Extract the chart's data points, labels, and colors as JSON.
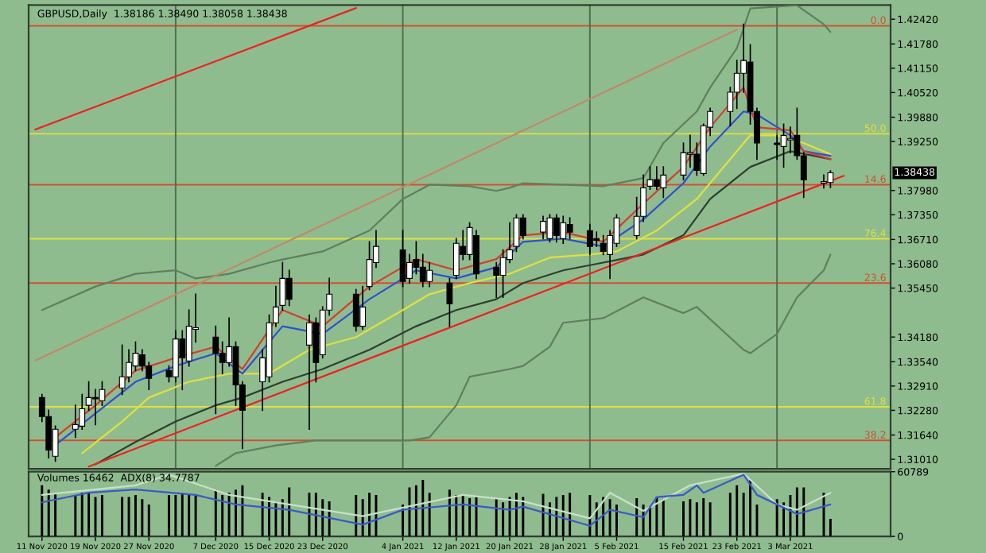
{
  "chart_data": [
    {
      "type": "candlestick",
      "title": "GBPUSD,Daily  1.38186 1.38490 1.38058 1.38438",
      "x": [
        "2020-11-11",
        "2020-11-12",
        "2020-11-13",
        "2020-11-16",
        "2020-11-17",
        "2020-11-18",
        "2020-11-19",
        "2020-11-20",
        "2020-11-23",
        "2020-11-24",
        "2020-11-25",
        "2020-11-26",
        "2020-11-27",
        "2020-11-30",
        "2020-12-01",
        "2020-12-02",
        "2020-12-03",
        "2020-12-04",
        "2020-12-07",
        "2020-12-08",
        "2020-12-09",
        "2020-12-10",
        "2020-12-11",
        "2020-12-14",
        "2020-12-15",
        "2020-12-16",
        "2020-12-17",
        "2020-12-18",
        "2020-12-21",
        "2020-12-22",
        "2020-12-23",
        "2020-12-24",
        "2020-12-28",
        "2020-12-29",
        "2020-12-30",
        "2020-12-31",
        "2021-01-04",
        "2021-01-05",
        "2021-01-06",
        "2021-01-07",
        "2021-01-08",
        "2021-01-11",
        "2021-01-12",
        "2021-01-13",
        "2021-01-14",
        "2021-01-15",
        "2021-01-18",
        "2021-01-19",
        "2021-01-20",
        "2021-01-21",
        "2021-01-22",
        "2021-01-25",
        "2021-01-26",
        "2021-01-27",
        "2021-01-28",
        "2021-01-29",
        "2021-02-01",
        "2021-02-02",
        "2021-02-03",
        "2021-02-04",
        "2021-02-05",
        "2021-02-08",
        "2021-02-09",
        "2021-02-10",
        "2021-02-11",
        "2021-02-12",
        "2021-02-15",
        "2021-02-16",
        "2021-02-17",
        "2021-02-18",
        "2021-02-19",
        "2021-02-22",
        "2021-02-23",
        "2021-02-24",
        "2021-02-25",
        "2021-02-26",
        "2021-03-01",
        "2021-03-02",
        "2021-03-03",
        "2021-03-04",
        "2021-03-05",
        "2021-03-08",
        "2021-03-09"
      ],
      "ohlc": [
        [
          1.3261,
          1.3269,
          1.3199,
          1.3212
        ],
        [
          1.3212,
          1.3228,
          1.3105,
          1.3125
        ],
        [
          1.3109,
          1.3187,
          1.3096,
          1.3179
        ],
        [
          1.3179,
          1.3241,
          1.3158,
          1.3191
        ],
        [
          1.3187,
          1.3269,
          1.3179,
          1.3232
        ],
        [
          1.3241,
          1.3302,
          1.3228,
          1.3261
        ],
        [
          1.3261,
          1.3282,
          1.3191,
          1.3258
        ],
        [
          1.3253,
          1.3302,
          1.3241,
          1.3282
        ],
        [
          1.3286,
          1.3397,
          1.3269,
          1.3315
        ],
        [
          1.3315,
          1.3385,
          1.3302,
          1.3352
        ],
        [
          1.3343,
          1.3405,
          1.3331,
          1.3376
        ],
        [
          1.3372,
          1.3385,
          1.3331,
          1.3343
        ],
        [
          1.3343,
          1.3352,
          1.3282,
          1.3311
        ],
        [
          1.3331,
          1.3343,
          1.3302,
          1.3315
        ],
        [
          1.3315,
          1.3434,
          1.3302,
          1.3413
        ],
        [
          1.3413,
          1.3434,
          1.3282,
          1.3364
        ],
        [
          1.3356,
          1.3488,
          1.3343,
          1.3446
        ],
        [
          1.3438,
          1.3529,
          1.3405,
          1.3442
        ],
        [
          1.3418,
          1.3446,
          1.322,
          1.3376
        ],
        [
          1.3376,
          1.3405,
          1.3323,
          1.3352
        ],
        [
          1.3352,
          1.3467,
          1.3343,
          1.3393
        ],
        [
          1.3393,
          1.3405,
          1.3241,
          1.3294
        ],
        [
          1.3294,
          1.3302,
          1.3129,
          1.3228
        ],
        [
          1.3302,
          1.3385,
          1.3228,
          1.3364
        ],
        [
          1.3315,
          1.3475,
          1.3302,
          1.3455
        ],
        [
          1.3455,
          1.3549,
          1.3446,
          1.3496
        ],
        [
          1.35,
          1.3611,
          1.3488,
          1.357
        ],
        [
          1.357,
          1.3591,
          1.35,
          1.3516
        ],
        [
          1.3397,
          1.3475,
          1.3179,
          1.3455
        ],
        [
          1.3455,
          1.3467,
          1.3302,
          1.3352
        ],
        [
          1.3372,
          1.3496,
          1.3364,
          1.3488
        ],
        [
          1.3488,
          1.357,
          1.3475,
          1.3529
        ],
        [
          1.3529,
          1.3541,
          1.3434,
          1.3446
        ],
        [
          1.3446,
          1.3549,
          1.3438,
          1.3496
        ],
        [
          1.3549,
          1.3665,
          1.3541,
          1.3619
        ],
        [
          1.3611,
          1.3694,
          1.3599,
          1.3653
        ],
        [
          1.3644,
          1.3694,
          1.3549,
          1.3562
        ],
        [
          1.357,
          1.3632,
          1.3558,
          1.3611
        ],
        [
          1.3619,
          1.3665,
          1.3582,
          1.3599
        ],
        [
          1.3599,
          1.3632,
          1.3549,
          1.3562
        ],
        [
          1.3562,
          1.3611,
          1.3549,
          1.3591
        ],
        [
          1.3558,
          1.357,
          1.3446,
          1.3504
        ],
        [
          1.3578,
          1.3673,
          1.357,
          1.3661
        ],
        [
          1.3653,
          1.3694,
          1.3619,
          1.3632
        ],
        [
          1.3632,
          1.3714,
          1.3619,
          1.3702
        ],
        [
          1.3681,
          1.3694,
          1.357,
          1.3582
        ],
        [
          1.3599,
          1.3611,
          1.3521,
          1.3578
        ],
        [
          1.3578,
          1.3644,
          1.3521,
          1.3624
        ],
        [
          1.3619,
          1.3714,
          1.3611,
          1.3644
        ],
        [
          1.3653,
          1.3735,
          1.364,
          1.3727
        ],
        [
          1.3727,
          1.3735,
          1.3673,
          1.3681
        ],
        [
          1.369,
          1.3731,
          1.3673,
          1.3718
        ],
        [
          1.3673,
          1.3735,
          1.3665,
          1.3727
        ],
        [
          1.3727,
          1.3735,
          1.3665,
          1.3681
        ],
        [
          1.3673,
          1.3731,
          1.3661,
          1.3714
        ],
        [
          1.371,
          1.3727,
          1.3673,
          1.369
        ],
        [
          1.3694,
          1.371,
          1.3632,
          1.3653
        ],
        [
          1.3673,
          1.369,
          1.3653,
          1.3669
        ],
        [
          1.3661,
          1.3681,
          1.3632,
          1.364
        ],
        [
          1.3632,
          1.3694,
          1.357,
          1.3681
        ],
        [
          1.3661,
          1.3735,
          1.3653,
          1.3727
        ],
        [
          1.3681,
          1.378,
          1.3673,
          1.3731
        ],
        [
          1.3731,
          1.3838,
          1.3718,
          1.3805
        ],
        [
          1.3809,
          1.3859,
          1.3801,
          1.3826
        ],
        [
          1.3826,
          1.3859,
          1.3801,
          1.3809
        ],
        [
          1.3805,
          1.3859,
          1.378,
          1.3838
        ],
        [
          1.3838,
          1.3921,
          1.3826,
          1.3896
        ],
        [
          1.3892,
          1.3941,
          1.3859,
          1.3896
        ],
        [
          1.3892,
          1.3921,
          1.3838,
          1.385
        ],
        [
          1.3842,
          1.397,
          1.3838,
          1.3966
        ],
        [
          1.3962,
          1.4011,
          1.3941,
          1.4003
        ],
        [
          1.4003,
          1.4065,
          1.3966,
          1.4053
        ],
        [
          1.4053,
          1.4135,
          1.4011,
          1.4102
        ],
        [
          1.4102,
          1.4229,
          1.4053,
          1.4135
        ],
        [
          1.4131,
          1.4176,
          1.397,
          1.4003
        ],
        [
          1.4003,
          1.4011,
          1.3879,
          1.3921
        ],
        [
          1.3921,
          1.3941,
          1.3879,
          1.3917
        ],
        [
          1.3912,
          1.397,
          1.3859,
          1.3941
        ],
        [
          1.3929,
          1.3962,
          1.3896,
          1.3933
        ],
        [
          1.3941,
          1.4011,
          1.3879,
          1.3888
        ],
        [
          1.3888,
          1.3896,
          1.378,
          1.3826
        ],
        [
          1.3817,
          1.3838,
          1.3805,
          1.3821
        ],
        [
          1.38186,
          1.3849,
          1.38058,
          1.38438
        ]
      ],
      "series": [
        {
          "type": "line",
          "color": "#5f7f5f",
          "x": [
            "2020-11-11",
            "2020-11-19",
            "2020-11-25",
            "2020-12-01",
            "2020-12-04",
            "2020-12-09",
            "2020-12-15",
            "2020-12-17",
            "2020-12-23",
            "2020-12-30",
            "2021-01-04",
            "2021-01-08",
            "2021-01-14",
            "2021-01-18",
            "2021-01-20",
            "2021-01-22",
            "2021-01-28",
            "2021-02-03",
            "2021-02-09",
            "2021-02-12",
            "2021-02-17",
            "2021-02-19",
            "2021-02-23",
            "2021-02-25",
            "2021-03-04",
            "2021-03-08",
            "2021-03-09"
          ],
          "values": [
            1.3488,
            1.3549,
            1.3582,
            1.3591,
            1.357,
            1.3582,
            1.3611,
            1.3619,
            1.364,
            1.3694,
            1.3776,
            1.3813,
            1.3809,
            1.3797,
            1.3805,
            1.3817,
            1.3813,
            1.3809,
            1.383,
            1.3921,
            1.4003,
            1.4065,
            1.4167,
            1.427,
            1.4278,
            1.4229,
            1.4209
          ]
        },
        {
          "type": "line",
          "color": "#5f7f5f",
          "x": [
            "2020-12-07",
            "2020-12-10",
            "2020-12-16",
            "2020-12-22",
            "2021-01-05",
            "2021-01-08",
            "2021-01-12",
            "2021-01-14",
            "2021-01-20",
            "2021-01-22",
            "2021-01-26",
            "2021-01-28",
            "2021-02-03",
            "2021-02-09",
            "2021-02-15",
            "2021-02-17",
            "2021-02-24",
            "2021-02-25",
            "2021-03-01",
            "2021-03-04",
            "2021-03-08",
            "2021-03-09"
          ],
          "values": [
            1.3084,
            1.3117,
            1.3137,
            1.315,
            1.315,
            1.3158,
            1.3241,
            1.3315,
            1.3335,
            1.3343,
            1.3393,
            1.3455,
            1.3467,
            1.3521,
            1.348,
            1.3496,
            1.3385,
            1.3376,
            1.3426,
            1.3521,
            1.3591,
            1.3632
          ]
        },
        {
          "type": "line",
          "color": "#2f3f2f",
          "x": [
            "2020-11-19",
            "2020-11-25",
            "2020-12-01",
            "2020-12-07",
            "2020-12-11",
            "2020-12-17",
            "2020-12-23",
            "2020-12-30",
            "2021-01-06",
            "2021-01-12",
            "2021-01-18",
            "2021-01-22",
            "2021-01-28",
            "2021-02-03",
            "2021-02-09",
            "2021-02-15",
            "2021-02-19",
            "2021-02-25",
            "2021-03-03",
            "2021-03-09"
          ],
          "values": [
            1.3088,
            1.3146,
            1.3199,
            1.3241,
            1.3261,
            1.3302,
            1.3335,
            1.3385,
            1.3446,
            1.3488,
            1.3516,
            1.3558,
            1.3591,
            1.3611,
            1.3632,
            1.3682,
            1.3776,
            1.3859,
            1.39,
            1.3879
          ]
        },
        {
          "type": "line",
          "color": "#e0e040",
          "x": [
            "2020-11-17",
            "2020-11-23",
            "2020-11-27",
            "2020-12-03",
            "2020-12-09",
            "2020-12-15",
            "2020-12-21",
            "2020-12-28",
            "2021-01-04",
            "2021-01-08",
            "2021-01-14",
            "2021-01-20",
            "2021-01-26",
            "2021-02-01",
            "2021-02-05",
            "2021-02-11",
            "2021-02-17",
            "2021-02-23",
            "2021-02-25",
            "2021-03-01",
            "2021-03-05",
            "2021-03-09"
          ],
          "values": [
            1.3117,
            1.3199,
            1.3261,
            1.3302,
            1.3323,
            1.3323,
            1.3385,
            1.3418,
            1.3488,
            1.3529,
            1.3558,
            1.3582,
            1.3624,
            1.3632,
            1.364,
            1.3694,
            1.3776,
            1.39,
            1.3941,
            1.3941,
            1.3921,
            1.3892
          ]
        },
        {
          "type": "line",
          "color": "#3050d0",
          "x": [
            "2020-11-13",
            "2020-11-19",
            "2020-11-25",
            "2020-12-01",
            "2020-12-07",
            "2020-12-11",
            "2020-12-17",
            "2020-12-23",
            "2020-12-30",
            "2021-01-06",
            "2021-01-12",
            "2021-01-18",
            "2021-01-22",
            "2021-01-28",
            "2021-02-03",
            "2021-02-09",
            "2021-02-15",
            "2021-02-19",
            "2021-02-24",
            "2021-02-26",
            "2021-03-03",
            "2021-03-05",
            "2021-03-09"
          ],
          "values": [
            1.3138,
            1.322,
            1.3302,
            1.3343,
            1.3376,
            1.3323,
            1.3446,
            1.3426,
            1.3516,
            1.3591,
            1.357,
            1.3599,
            1.3665,
            1.3673,
            1.3653,
            1.3723,
            1.3817,
            1.3912,
            1.4003,
            1.3995,
            1.3941,
            1.39,
            1.3888
          ]
        },
        {
          "type": "line",
          "color": "#d04030",
          "x": [
            "2020-11-13",
            "2020-11-19",
            "2020-11-25",
            "2020-12-01",
            "2020-12-07",
            "2020-12-11",
            "2020-12-17",
            "2020-12-23",
            "2020-12-30",
            "2021-01-06",
            "2021-01-12",
            "2021-01-18",
            "2021-01-22",
            "2021-01-28",
            "2021-02-03",
            "2021-02-09",
            "2021-02-15",
            "2021-02-19",
            "2021-02-24",
            "2021-02-26",
            "2021-03-03",
            "2021-03-05",
            "2021-03-09"
          ],
          "values": [
            1.3158,
            1.3241,
            1.3331,
            1.3364,
            1.3393,
            1.3335,
            1.3488,
            1.3446,
            1.3549,
            1.362,
            1.3591,
            1.362,
            1.3682,
            1.369,
            1.3665,
            1.3764,
            1.3859,
            1.3962,
            1.4065,
            1.3962,
            1.3954,
            1.39,
            1.3879
          ]
        },
        {
          "type": "line",
          "color": "#c08868",
          "x": [
            "2020-11-10",
            "2021-02-23"
          ],
          "values": [
            1.3357,
            1.4215
          ]
        },
        {
          "type": "line",
          "color": "#ee2020",
          "x": [
            "2020-11-10",
            "2020-12-28"
          ],
          "values": [
            1.3956,
            1.4271
          ]
        },
        {
          "type": "line",
          "color": "#ee2020",
          "x": [
            "2020-11-18",
            "2021-03-11"
          ],
          "values": [
            1.3082,
            1.3836
          ]
        }
      ],
      "ref_lines": [
        {
          "axis": "y",
          "value": 1.4225,
          "color": "#d05030"
        },
        {
          "axis": "y",
          "value": 1.3945,
          "color": "#e0e040"
        },
        {
          "axis": "y",
          "value": 1.3813,
          "color": "#d05030"
        },
        {
          "axis": "y",
          "value": 1.3673,
          "color": "#e0e040"
        },
        {
          "axis": "y",
          "value": 1.3558,
          "color": "#d05030"
        },
        {
          "axis": "y",
          "value": 1.3237,
          "color": "#e0e040"
        },
        {
          "axis": "y",
          "value": 1.315,
          "color": "#d05030"
        },
        {
          "axis": "x",
          "value": "2020-12-01",
          "color": "#4f6f4f"
        },
        {
          "axis": "x",
          "value": "2021-01-04",
          "color": "#4f6f4f"
        },
        {
          "axis": "x",
          "value": "2021-02-01",
          "color": "#4f6f4f"
        },
        {
          "axis": "x",
          "value": "2021-03-01",
          "color": "#4f6f4f"
        }
      ],
      "annotations": [
        "1.38438",
        "0.0",
        "50.0",
        "14.6",
        "76.4",
        "23.6",
        "61.8",
        "38.2"
      ],
      "xlim": [
        "2020-11-09",
        "2021-03-18"
      ],
      "ylim": [
        1.3076,
        1.4279
      ],
      "yticks": [
        {
          "value": 1.4242,
          "label": "1.42420"
        },
        {
          "value": 1.4178,
          "label": "1.41780"
        },
        {
          "value": 1.4115,
          "label": "1.41150"
        },
        {
          "value": 1.4052,
          "label": "1.40520"
        },
        {
          "value": 1.3988,
          "label": "1.39880"
        },
        {
          "value": 1.3925,
          "label": "1.39250"
        },
        {
          "value": 1.3798,
          "label": "1.37980"
        },
        {
          "value": 1.3735,
          "label": "1.37350"
        },
        {
          "value": 1.3671,
          "label": "1.36710"
        },
        {
          "value": 1.3608,
          "label": "1.36080"
        },
        {
          "value": 1.3545,
          "label": "1.35450"
        },
        {
          "value": 1.3418,
          "label": "1.34180"
        },
        {
          "value": 1.3354,
          "label": "1.33540"
        },
        {
          "value": 1.3291,
          "label": "1.32910"
        },
        {
          "value": 1.3228,
          "label": "1.32280"
        },
        {
          "value": 1.3164,
          "label": "1.31640"
        },
        {
          "value": 1.3101,
          "label": "1.31010"
        }
      ],
      "tick_labels": "y",
      "grid": false
    },
    {
      "type": "bar",
      "annotations": [
        "Volumes 16462  ADX(8) 34.7787"
      ],
      "x": [
        "2020-11-11",
        "2020-11-12",
        "2020-11-13",
        "2020-11-16",
        "2020-11-17",
        "2020-11-18",
        "2020-11-19",
        "2020-11-20",
        "2020-11-23",
        "2020-11-24",
        "2020-11-25",
        "2020-11-26",
        "2020-11-27",
        "2020-11-30",
        "2020-12-01",
        "2020-12-02",
        "2020-12-03",
        "2020-12-04",
        "2020-12-07",
        "2020-12-08",
        "2020-12-09",
        "2020-12-10",
        "2020-12-11",
        "2020-12-14",
        "2020-12-15",
        "2020-12-16",
        "2020-12-17",
        "2020-12-18",
        "2020-12-21",
        "2020-12-22",
        "2020-12-23",
        "2020-12-24",
        "2020-12-28",
        "2020-12-29",
        "2020-12-30",
        "2020-12-31",
        "2021-01-04",
        "2021-01-05",
        "2021-01-06",
        "2021-01-07",
        "2021-01-08",
        "2021-01-11",
        "2021-01-12",
        "2021-01-13",
        "2021-01-14",
        "2021-01-15",
        "2021-01-18",
        "2021-01-19",
        "2021-01-20",
        "2021-01-21",
        "2021-01-22",
        "2021-01-25",
        "2021-01-26",
        "2021-01-27",
        "2021-01-28",
        "2021-01-29",
        "2021-02-01",
        "2021-02-02",
        "2021-02-03",
        "2021-02-04",
        "2021-02-05",
        "2021-02-08",
        "2021-02-09",
        "2021-02-10",
        "2021-02-11",
        "2021-02-12",
        "2021-02-15",
        "2021-02-16",
        "2021-02-17",
        "2021-02-18",
        "2021-02-19",
        "2021-02-22",
        "2021-02-23",
        "2021-02-24",
        "2021-02-25",
        "2021-02-26",
        "2021-03-01",
        "2021-03-02",
        "2021-03-03",
        "2021-03-04",
        "2021-03-05",
        "2021-03-08",
        "2021-03-09"
      ],
      "series": [
        {
          "type": "bar",
          "color": "#000000",
          "values": [
            48000,
            44000,
            41000,
            39000,
            41000,
            41000,
            37000,
            39000,
            37000,
            37000,
            39000,
            35000,
            30000,
            39000,
            39000,
            41000,
            40000,
            39000,
            44000,
            39000,
            41000,
            44000,
            48000,
            41000,
            37000,
            33000,
            35000,
            46000,
            41000,
            41000,
            35000,
            33000,
            39000,
            35000,
            41000,
            39000,
            30000,
            46000,
            48000,
            53000,
            41000,
            44000,
            39000,
            39000,
            36000,
            37000,
            36000,
            32000,
            37000,
            41000,
            37000,
            40000,
            32000,
            37000,
            39000,
            41000,
            39000,
            32000,
            37000,
            35000,
            30000,
            36000,
            30000,
            28000,
            37000,
            35000,
            33000,
            35000,
            32000,
            36000,
            32000,
            41000,
            48000,
            41000,
            53000,
            30000,
            35000,
            32000,
            39000,
            46000,
            46000,
            41000,
            16462
          ]
        },
        {
          "type": "line",
          "color": "#c8e0c8",
          "x": [
            "2020-11-11",
            "2020-11-25",
            "2020-11-30",
            "2020-12-09",
            "2020-12-29",
            "2021-01-13",
            "2021-01-22",
            "2021-02-01",
            "2021-02-04",
            "2021-02-09",
            "2021-02-16",
            "2021-02-24",
            "2021-03-01",
            "2021-03-04",
            "2021-03-09"
          ],
          "values": [
            39000,
            48000,
            58000,
            39000,
            19000,
            39000,
            33000,
            17000,
            41000,
            24000,
            48000,
            59000,
            30000,
            25000,
            41000
          ]
        },
        {
          "type": "line",
          "color": "#3a5ac8",
          "x": [
            "2020-11-11",
            "2020-11-18",
            "2020-11-25",
            "2020-12-04",
            "2020-12-10",
            "2020-12-18",
            "2020-12-29",
            "2021-01-04",
            "2021-01-13",
            "2021-01-20",
            "2021-01-22",
            "2021-02-01",
            "2021-02-04",
            "2021-02-09",
            "2021-02-11",
            "2021-02-15",
            "2021-02-17",
            "2021-02-18",
            "2021-02-24",
            "2021-02-26",
            "2021-03-04",
            "2021-03-09"
          ],
          "values": [
            32000,
            41000,
            44000,
            39000,
            30000,
            25000,
            11000,
            25000,
            30000,
            25000,
            28000,
            10000,
            25000,
            18000,
            37000,
            39000,
            48000,
            41000,
            58000,
            39000,
            21000,
            30000
          ]
        }
      ],
      "xlim": [
        "2020-11-09",
        "2021-03-18"
      ],
      "ylim": [
        0,
        60789
      ],
      "yticks": [
        0,
        60789
      ],
      "xticks": [
        {
          "value": "2020-11-11",
          "label": "11 Nov 2020"
        },
        {
          "value": "2020-11-19",
          "label": "19 Nov 2020"
        },
        {
          "value": "2020-11-27",
          "label": "27 Nov 2020"
        },
        {
          "value": "2020-12-07",
          "label": "7 Dec 2020"
        },
        {
          "value": "2020-12-15",
          "label": "15 Dec 2020"
        },
        {
          "value": "2020-12-23",
          "label": "23 Dec 2020"
        },
        {
          "value": "2021-01-04",
          "label": "4 Jan 2021"
        },
        {
          "value": "2021-01-12",
          "label": "12 Jan 2021"
        },
        {
          "value": "2021-01-20",
          "label": "20 Jan 2021"
        },
        {
          "value": "2021-01-28",
          "label": "28 Jan 2021"
        },
        {
          "value": "2021-02-05",
          "label": "5 Feb 2021"
        },
        {
          "value": "2021-02-15",
          "label": "15 Feb 2021"
        },
        {
          "value": "2021-02-23",
          "label": "23 Feb 2021"
        },
        {
          "value": "2021-03-03",
          "label": "3 Mar 2021"
        }
      ],
      "grid": false
    }
  ]
}
